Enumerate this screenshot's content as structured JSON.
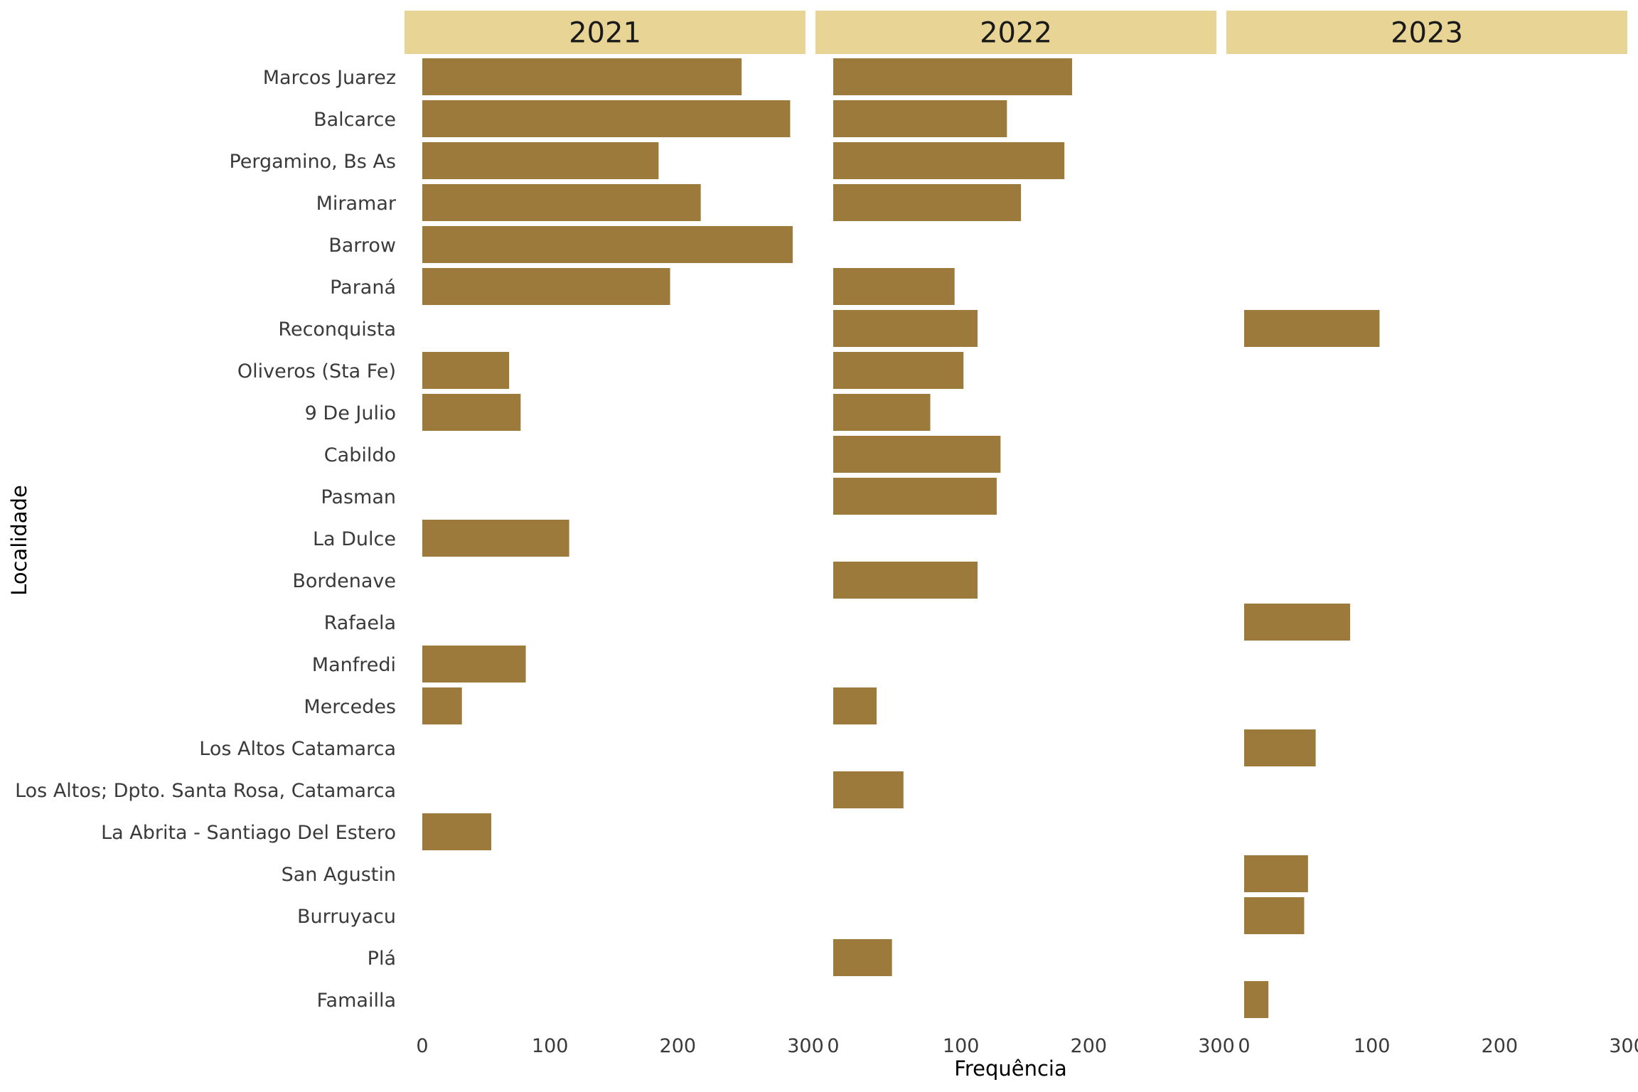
{
  "chart_data": {
    "type": "bar",
    "orientation": "horizontal",
    "facet_layout": "columns",
    "xlabel": "Frequência",
    "ylabel": "Localidade",
    "xlim": [
      0,
      300
    ],
    "xticks": [
      0,
      100,
      200,
      300
    ],
    "grid": false,
    "bar_color": "#9C7A3C",
    "strip_color": "#E8D596",
    "categories": [
      "Marcos Juarez",
      "Balcarce",
      "Pergamino, Bs As",
      "Miramar",
      "Barrow",
      "Paraná",
      "Reconquista",
      "Oliveros (Sta Fe)",
      "9 De Julio",
      "Cabildo",
      "Pasman",
      "La Dulce",
      "Bordenave",
      "Rafaela",
      "Manfredi",
      "Mercedes",
      "Los Altos Catamarca",
      "Los Altos; Dpto. Santa Rosa, Catamarca",
      "La Abrita - Santiago Del Estero",
      "San Agustin",
      "Burruyacu",
      "Plá",
      "Famailla"
    ],
    "facets": [
      {
        "name": "2021",
        "values": [
          250,
          288,
          185,
          218,
          290,
          194,
          null,
          68,
          77,
          null,
          null,
          115,
          null,
          null,
          81,
          31,
          null,
          null,
          54,
          null,
          null,
          null,
          null
        ]
      },
      {
        "name": "2022",
        "values": [
          187,
          136,
          181,
          147,
          null,
          95,
          113,
          102,
          76,
          131,
          128,
          null,
          113,
          null,
          null,
          34,
          null,
          55,
          null,
          null,
          null,
          46,
          null
        ]
      },
      {
        "name": "2023",
        "values": [
          null,
          null,
          null,
          null,
          null,
          null,
          106,
          null,
          null,
          null,
          null,
          null,
          null,
          83,
          null,
          null,
          56,
          null,
          null,
          50,
          47,
          null,
          19
        ]
      }
    ]
  }
}
